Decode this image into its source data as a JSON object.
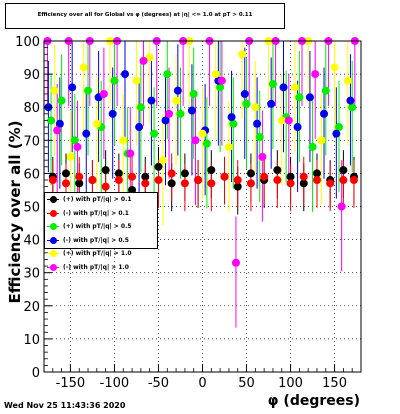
{
  "title": "Efficiency over all for Global vs φ (degrees) at |η| <= 1.0 at pT > 0.11",
  "timestamp": "Wed Nov 25 11:43:36 2020",
  "chart_data": {
    "type": "scatter",
    "xlabel": "φ (degrees)",
    "ylabel": "Efficiency over all (%)",
    "xlim": [
      -180,
      180
    ],
    "ylim": [
      0,
      100
    ],
    "xticks": [
      "-150",
      "-100",
      "-50",
      "0",
      "50",
      "100",
      "150"
    ],
    "yticks": [
      "0",
      "10",
      "20",
      "30",
      "40",
      "50",
      "60",
      "70",
      "80",
      "90",
      "100"
    ],
    "grid": true,
    "legend_position": "left",
    "series": [
      {
        "name": "(+) with pT/|q| > 0.1",
        "color": "#000000",
        "x": [
          -170,
          -155,
          -140,
          -125,
          -110,
          -95,
          -80,
          -65,
          -50,
          -35,
          -20,
          -5,
          10,
          25,
          40,
          55,
          70,
          85,
          100,
          115,
          130,
          145,
          160,
          172
        ],
        "y": [
          59,
          60,
          57,
          58,
          61,
          60,
          55,
          59,
          62,
          57,
          60,
          58,
          61,
          59,
          56,
          60,
          58,
          61,
          59,
          57,
          60,
          58,
          61,
          59
        ]
      },
      {
        "name": "(-) with pT/|q| > 0.1",
        "color": "#ff0000",
        "x": [
          -170,
          -155,
          -140,
          -125,
          -110,
          -95,
          -80,
          -65,
          -50,
          -35,
          -20,
          -5,
          10,
          25,
          40,
          55,
          70,
          85,
          100,
          115,
          130,
          145,
          160,
          172
        ],
        "y": [
          58,
          57,
          59,
          58,
          56,
          58,
          59,
          57,
          58,
          60,
          57,
          58,
          57,
          59,
          58,
          57,
          59,
          58,
          57,
          59,
          58,
          57,
          58,
          58
        ]
      },
      {
        "name": "(+) with pT/|q| > 0.5",
        "color": "#00ee00",
        "x": [
          -172,
          -160,
          -145,
          -130,
          -115,
          -100,
          -85,
          -70,
          -55,
          -40,
          -25,
          -10,
          5,
          20,
          35,
          50,
          65,
          80,
          95,
          110,
          125,
          140,
          155,
          170
        ],
        "y": [
          76,
          82,
          70,
          85,
          74,
          88,
          66,
          80,
          72,
          90,
          78,
          84,
          69,
          86,
          75,
          81,
          71,
          87,
          77,
          83,
          68,
          85,
          74,
          80
        ]
      },
      {
        "name": "(-) with pT/|q| > 0.5",
        "color": "#0000ee",
        "x": [
          -175,
          -162,
          -148,
          -132,
          -118,
          -102,
          -88,
          -72,
          -58,
          -42,
          -28,
          -12,
          3,
          18,
          33,
          48,
          62,
          78,
          92,
          108,
          122,
          138,
          152,
          168
        ],
        "y": [
          80,
          75,
          86,
          72,
          83,
          78,
          90,
          74,
          82,
          76,
          85,
          79,
          73,
          88,
          77,
          84,
          75,
          81,
          86,
          74,
          83,
          78,
          72,
          82
        ]
      },
      {
        "name": "(+) with pT/|q| > 1.0",
        "color": "#ffff00",
        "x": [
          -168,
          -150,
          -135,
          -120,
          -105,
          -90,
          -75,
          -60,
          -45,
          -30,
          -15,
          0,
          15,
          30,
          45,
          60,
          75,
          90,
          105,
          120,
          135,
          150,
          165
        ],
        "y": [
          85,
          65,
          92,
          75,
          100,
          70,
          88,
          95,
          64,
          82,
          100,
          72,
          90,
          68,
          96,
          80,
          100,
          76,
          86,
          100,
          70,
          92,
          88
        ]
      },
      {
        "name": "(-) with pT/|q| > 1.0",
        "color": "#ff00ff",
        "x": [
          -176,
          -165,
          -152,
          -142,
          -128,
          -112,
          -97,
          -82,
          -67,
          -52,
          -38,
          -22,
          -8,
          8,
          22,
          38,
          53,
          68,
          83,
          98,
          113,
          128,
          143,
          158,
          173
        ],
        "y": [
          100,
          73,
          100,
          68,
          100,
          84,
          100,
          66,
          94,
          100,
          78,
          100,
          70,
          100,
          88,
          33,
          100,
          65,
          100,
          76,
          100,
          90,
          100,
          50,
          100
        ]
      }
    ]
  }
}
